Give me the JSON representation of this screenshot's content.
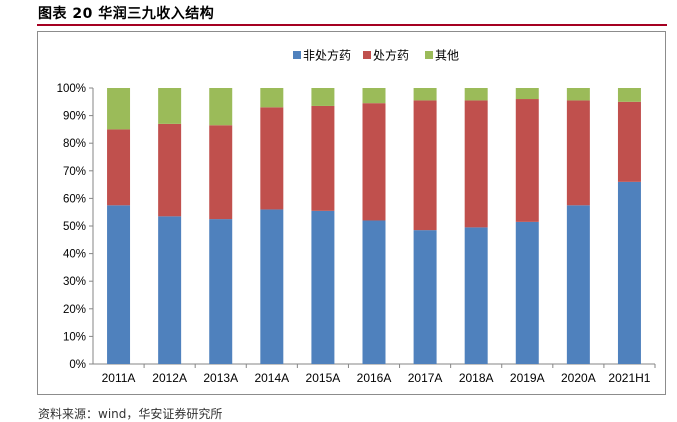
{
  "figure": {
    "title": "图表 20  华润三九收入结构",
    "source": "资料来源：wind，华安证券研究所"
  },
  "colors": {
    "title_rule": "#a50021",
    "series": [
      "#4f81bd",
      "#c0504d",
      "#9bbb59"
    ],
    "axis": "#868686",
    "frame": "#8c8c8c"
  },
  "chart_data": {
    "type": "bar",
    "stacked": true,
    "percent": true,
    "categories": [
      "2011A",
      "2012A",
      "2013A",
      "2014A",
      "2015A",
      "2016A",
      "2017A",
      "2018A",
      "2019A",
      "2020A",
      "2021H1"
    ],
    "series": [
      {
        "name": "非处方药",
        "color": "#4f81bd",
        "values": [
          57.5,
          53.5,
          52.5,
          56,
          55.5,
          52,
          48.5,
          49.5,
          51.5,
          57.5,
          66
        ]
      },
      {
        "name": "处方药",
        "color": "#c0504d",
        "values": [
          27.5,
          33.5,
          34,
          37,
          38,
          42.5,
          47,
          46,
          44.5,
          38,
          29
        ]
      },
      {
        "name": "其他",
        "color": "#9bbb59",
        "values": [
          15,
          13,
          13.5,
          7,
          6.5,
          5.5,
          4.5,
          4.5,
          4,
          4.5,
          5
        ]
      }
    ],
    "y_ticks": [
      "0%",
      "10%",
      "20%",
      "30%",
      "40%",
      "50%",
      "60%",
      "70%",
      "80%",
      "90%",
      "100%"
    ],
    "ylim": [
      0,
      100
    ],
    "grid": false,
    "legend_position": "top-center"
  }
}
